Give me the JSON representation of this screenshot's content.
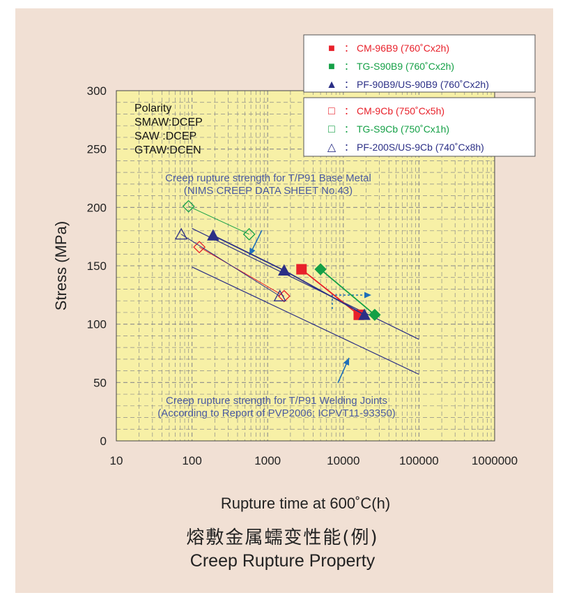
{
  "caption": {
    "japanese": "熔敷金属蠕变性能(例)",
    "english": "Creep Rupture Property"
  },
  "colors": {
    "background": "#f1e0d4",
    "plot_area": "#f7f0a6",
    "grid": "#8a8a8a",
    "red": "#e8202a",
    "green": "#14a046",
    "navy": "#2b2f86",
    "annotation_text": "#4a5aa0",
    "arrow_blue": "#1e6fb8"
  },
  "chart_data": {
    "type": "scatter",
    "xlabel": "Rupture time at 600˚C(h)",
    "ylabel": "Stress (MPa)",
    "x_scale": "log",
    "xlim": [
      10,
      1000000
    ],
    "ylim": [
      0,
      300
    ],
    "x_ticks": [
      "10",
      "100",
      "1000",
      "10000",
      "100000",
      "1000000"
    ],
    "y_ticks": [
      "0",
      "50",
      "100",
      "150",
      "200",
      "250",
      "300"
    ],
    "grid": true,
    "polarity": [
      "Polarity",
      "SMAW:DCEP",
      "SAW :DCEP",
      "GTAW:DCEN"
    ],
    "legend_filled": [
      {
        "marker": "■",
        "sep": "：",
        "label": "CM-96B9 (760˚Cx2h)",
        "color": "#e8202a"
      },
      {
        "marker": "■",
        "sep": "：",
        "label": "TG-S90B9 (760˚Cx2h)",
        "color": "#14a046"
      },
      {
        "marker": "▲",
        "sep": "：",
        "label": "PF-90B9/US-90B9 (760˚Cx2h)",
        "color": "#2b2f86"
      }
    ],
    "legend_open": [
      {
        "marker": "□",
        "sep": "：",
        "label": "CM-9Cb (750˚Cx5h)",
        "color": "#e8202a"
      },
      {
        "marker": "□",
        "sep": "：",
        "label": "TG-S9Cb (750˚Cx1h)",
        "color": "#14a046"
      },
      {
        "marker": "△",
        "sep": "：",
        "label": "PF-200S/US-9Cb (740˚Cx8h)",
        "color": "#2b2f86"
      }
    ],
    "annotations": {
      "base_metal": [
        "Creep rupture strength for T/P91 Base Metal",
        "(NIMS CREEP DATA SHEET No.43)"
      ],
      "welding_joints": [
        "Creep rupture strength for T/P91 Welding Joints",
        "(According to Report of PVP2006; ICPVT11-93350)"
      ]
    },
    "series": [
      {
        "name": "CM-96B9 (760˚Cx2h)",
        "marker": "square",
        "filled": true,
        "color": "#e8202a",
        "x": [
          2800,
          16000
        ],
        "y": [
          147,
          108
        ]
      },
      {
        "name": "TG-S90B9 (760˚Cx2h)",
        "marker": "diamond",
        "filled": true,
        "color": "#14a046",
        "x": [
          5000,
          26000
        ],
        "y": [
          147,
          108
        ]
      },
      {
        "name": "PF-90B9/US-90B9 (760˚Cx2h)",
        "marker": "triangle",
        "filled": true,
        "color": "#2b2f86",
        "x": [
          190,
          1650,
          19000
        ],
        "y": [
          176,
          146,
          108
        ]
      },
      {
        "name": "CM-9Cb (750˚Cx5h)",
        "marker": "diamond",
        "filled": false,
        "color": "#e8202a",
        "x": [
          125,
          1650
        ],
        "y": [
          166,
          124
        ]
      },
      {
        "name": "TG-S9Cb (750˚Cx1h)",
        "marker": "diamond",
        "filled": false,
        "color": "#14a046",
        "x": [
          90,
          570
        ],
        "y": [
          201,
          177
        ]
      },
      {
        "name": "PF-200S/US-9Cb (740˚Cx8h)",
        "marker": "triangle",
        "filled": false,
        "color": "#2b2f86",
        "x": [
          72,
          1450
        ],
        "y": [
          177,
          124
        ]
      }
    ],
    "reference_lines": [
      {
        "name": "T/P91 Base Metal",
        "color": "#2b2f86",
        "x": [
          100,
          100000
        ],
        "y": [
          182,
          87
        ]
      },
      {
        "name": "T/P91 Welding Joints",
        "color": "#2b2f86",
        "x": [
          100,
          100000
        ],
        "y": [
          149,
          57
        ]
      }
    ]
  }
}
